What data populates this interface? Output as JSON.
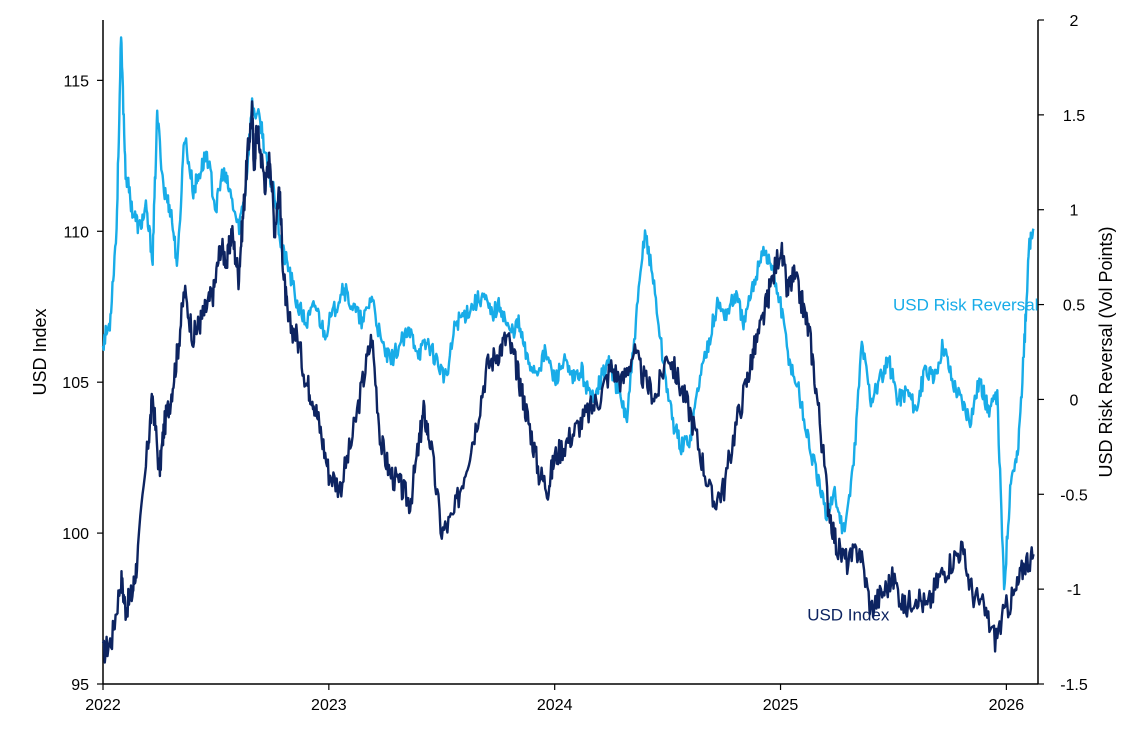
{
  "chart_data": {
    "type": "line",
    "title": "",
    "xlabel": "",
    "ylabel": "USD Index",
    "y2label": "USD Risk Reversal (Vol Points)",
    "xlim": [
      2022,
      2026.14
    ],
    "ylim": [
      95,
      117
    ],
    "y2lim": [
      -1.5,
      2
    ],
    "x_ticks": [
      2022,
      2023,
      2024,
      2025,
      2026
    ],
    "x_tick_labels": [
      "2022",
      "2023",
      "2024",
      "2025",
      "2026"
    ],
    "y_ticks": [
      95,
      100,
      105,
      110,
      115
    ],
    "y_tick_labels": [
      "95",
      "100",
      "105",
      "110",
      "115"
    ],
    "y2_ticks": [
      -1.5,
      -1,
      -0.5,
      0,
      0.5,
      1,
      1.5,
      2
    ],
    "y2_tick_labels": [
      "-1.5",
      "-1",
      "-0.5",
      "0",
      "0.5",
      "1",
      "1.5",
      "2"
    ],
    "grid": false,
    "legend": "inline labels",
    "series": [
      {
        "name": "USD Index",
        "axis": "left",
        "color": "#0d2461",
        "label_position": [
          2025.3,
          97.1
        ],
        "x": [
          2022.0,
          2022.04,
          2022.08,
          2022.1,
          2022.13,
          2022.15,
          2022.2,
          2022.22,
          2022.25,
          2022.27,
          2022.3,
          2022.33,
          2022.36,
          2022.4,
          2022.43,
          2022.46,
          2022.49,
          2022.52,
          2022.55,
          2022.57,
          2022.6,
          2022.62,
          2022.64,
          2022.66,
          2022.67,
          2022.68,
          2022.7,
          2022.72,
          2022.74,
          2022.76,
          2022.78,
          2022.8,
          2022.82,
          2022.86,
          2022.9,
          2022.93,
          2022.96,
          2023.0,
          2023.05,
          2023.1,
          2023.15,
          2023.19,
          2023.23,
          2023.27,
          2023.32,
          2023.36,
          2023.4,
          2023.42,
          2023.45,
          2023.5,
          2023.55,
          2023.6,
          2023.65,
          2023.7,
          2023.75,
          2023.79,
          2023.83,
          2023.86,
          2023.89,
          2023.93,
          2023.97,
          2024.0,
          2024.05,
          2024.1,
          2024.15,
          2024.2,
          2024.25,
          2024.3,
          2024.35,
          2024.4,
          2024.45,
          2024.5,
          2024.55,
          2024.6,
          2024.65,
          2024.7,
          2024.75,
          2024.8,
          2024.85,
          2024.88,
          2024.92,
          2024.95,
          2025.0,
          2025.03,
          2025.06,
          2025.1,
          2025.13,
          2025.17,
          2025.21,
          2025.25,
          2025.3,
          2025.35,
          2025.4,
          2025.45,
          2025.5,
          2025.55,
          2025.6,
          2025.65,
          2025.7,
          2025.75,
          2025.8,
          2025.85,
          2025.9,
          2025.95,
          2026.0,
          2026.04,
          2026.08,
          2026.12
        ],
        "y": [
          96.0,
          96.5,
          98.5,
          97.5,
          98.0,
          99.0,
          103.0,
          104.5,
          102.0,
          103.5,
          104.5,
          106.0,
          108.0,
          106.5,
          107.0,
          107.5,
          108.0,
          109.5,
          109.0,
          110.0,
          108.5,
          110.5,
          112.5,
          114.0,
          112.0,
          113.5,
          112.5,
          111.5,
          112.5,
          110.0,
          111.5,
          108.5,
          107.0,
          106.5,
          105.0,
          104.5,
          103.5,
          102.0,
          101.5,
          103.0,
          105.0,
          106.5,
          103.0,
          102.0,
          101.5,
          101.0,
          103.0,
          104.0,
          103.0,
          100.0,
          100.5,
          102.0,
          103.5,
          105.5,
          106.0,
          106.5,
          105.5,
          104.5,
          103.5,
          102.0,
          101.5,
          102.5,
          103.0,
          103.5,
          104.0,
          104.5,
          105.5,
          105.0,
          106.0,
          105.0,
          104.5,
          106.0,
          105.0,
          104.0,
          102.5,
          101.0,
          101.5,
          103.5,
          105.0,
          106.0,
          107.0,
          108.0,
          109.5,
          108.0,
          108.5,
          107.5,
          106.5,
          104.0,
          101.0,
          99.5,
          99.0,
          99.5,
          97.5,
          98.0,
          98.5,
          97.5,
          98.0,
          97.5,
          98.5,
          99.0,
          99.5,
          98.0,
          97.5,
          96.5,
          97.5,
          98.0,
          99.0,
          99.3
        ]
      },
      {
        "name": "USD Risk Reversal",
        "axis": "right",
        "color": "#18ace8",
        "label_position": [
          2025.82,
          0.47
        ],
        "x": [
          2022.0,
          2022.03,
          2022.06,
          2022.08,
          2022.1,
          2022.13,
          2022.16,
          2022.19,
          2022.22,
          2022.24,
          2022.27,
          2022.3,
          2022.33,
          2022.36,
          2022.4,
          2022.43,
          2022.46,
          2022.5,
          2022.53,
          2022.56,
          2022.6,
          2022.63,
          2022.66,
          2022.7,
          2022.73,
          2022.76,
          2022.79,
          2022.82,
          2022.86,
          2022.9,
          2022.94,
          2022.98,
          2023.02,
          2023.06,
          2023.1,
          2023.15,
          2023.19,
          2023.23,
          2023.27,
          2023.32,
          2023.36,
          2023.4,
          2023.44,
          2023.48,
          2023.52,
          2023.56,
          2023.6,
          2023.64,
          2023.68,
          2023.72,
          2023.76,
          2023.8,
          2023.84,
          2023.88,
          2023.92,
          2023.96,
          2024.0,
          2024.04,
          2024.08,
          2024.12,
          2024.16,
          2024.2,
          2024.24,
          2024.28,
          2024.32,
          2024.36,
          2024.4,
          2024.44,
          2024.48,
          2024.52,
          2024.56,
          2024.6,
          2024.64,
          2024.68,
          2024.72,
          2024.76,
          2024.8,
          2024.84,
          2024.88,
          2024.92,
          2024.96,
          2025.0,
          2025.04,
          2025.08,
          2025.12,
          2025.16,
          2025.2,
          2025.24,
          2025.28,
          2025.32,
          2025.36,
          2025.4,
          2025.44,
          2025.48,
          2025.52,
          2025.56,
          2025.6,
          2025.64,
          2025.68,
          2025.72,
          2025.76,
          2025.8,
          2025.84,
          2025.88,
          2025.92,
          2025.96,
          2025.99,
          2026.02,
          2026.05,
          2026.08,
          2026.1,
          2026.12
        ],
        "y": [
          0.3,
          0.4,
          0.9,
          1.9,
          1.2,
          1.0,
          0.9,
          1.0,
          0.75,
          1.5,
          1.1,
          1.0,
          0.7,
          1.4,
          1.1,
          1.2,
          1.3,
          1.0,
          1.2,
          1.1,
          0.9,
          1.1,
          1.55,
          1.45,
          1.2,
          1.1,
          0.8,
          0.7,
          0.5,
          0.4,
          0.5,
          0.35,
          0.45,
          0.6,
          0.5,
          0.4,
          0.55,
          0.3,
          0.2,
          0.3,
          0.35,
          0.25,
          0.3,
          0.2,
          0.1,
          0.4,
          0.45,
          0.5,
          0.55,
          0.45,
          0.5,
          0.35,
          0.4,
          0.2,
          0.15,
          0.25,
          0.1,
          0.2,
          0.1,
          0.15,
          0.0,
          0.1,
          0.2,
          0.05,
          -0.1,
          0.4,
          0.9,
          0.6,
          0.2,
          -0.1,
          -0.25,
          -0.2,
          0.1,
          0.3,
          0.5,
          0.45,
          0.55,
          0.4,
          0.6,
          0.8,
          0.7,
          0.5,
          0.2,
          0.05,
          -0.2,
          -0.4,
          -0.6,
          -0.5,
          -0.7,
          -0.4,
          0.3,
          0.0,
          0.1,
          0.2,
          0.0,
          0.05,
          -0.05,
          0.15,
          0.1,
          0.3,
          0.1,
          0.0,
          -0.1,
          0.1,
          -0.05,
          0.0,
          -1.0,
          -0.4,
          -0.3,
          0.3,
          0.8,
          0.9
        ]
      }
    ]
  }
}
